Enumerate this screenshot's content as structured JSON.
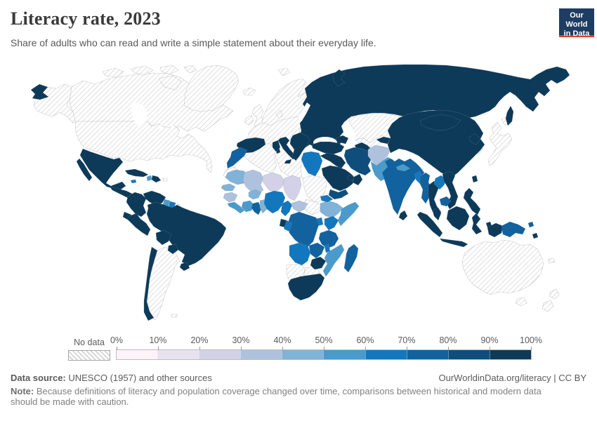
{
  "header": {
    "title": "Literacy rate, 2023",
    "subtitle": "Share of adults who can read and write a simple statement about their everyday life.",
    "logo": {
      "line1": "Our World",
      "line2": "in Data",
      "bg": "#1d3d63",
      "accent": "#dc3e31"
    }
  },
  "footer": {
    "source_label": "Data source:",
    "source_text": " UNESCO (1957) and other sources",
    "link_text": "OurWorldinData.org/literacy | CC BY",
    "note_label": "Note:",
    "note_text": " Because definitions of literacy and population coverage changed over time, comparisons between historical and modern data should be made with caution."
  },
  "chart_data": {
    "type": "choropleth_map",
    "title": "Literacy rate, 2023",
    "unit": "%",
    "legend": {
      "no_data_label": "No data",
      "no_data_pattern": "diagonal-hatch",
      "tick_labels": [
        "0%",
        "10%",
        "20%",
        "30%",
        "40%",
        "50%",
        "60%",
        "70%",
        "80%",
        "90%",
        "100%"
      ],
      "bin_ranges": [
        "0-10%",
        "10-20%",
        "20-30%",
        "30-40%",
        "40-50%",
        "50-60%",
        "60-70%",
        "70-80%",
        "80-90%",
        "90-100%"
      ],
      "bin_colors": [
        "#fcf3f9",
        "#e6e2f0",
        "#d3d1e7",
        "#aec2de",
        "#81b2d8",
        "#4a9bcc",
        "#1377bd",
        "#11629e",
        "#0f4e7c",
        "#0d3a59"
      ],
      "hatch_line_color": "#d4d4d4"
    },
    "regions": [
      {
        "id": "canada",
        "name": "Canada",
        "bin": "no_data"
      },
      {
        "id": "usa",
        "name": "United States",
        "bin": "no_data"
      },
      {
        "id": "alaska",
        "name": "United States (Alaska)",
        "bin": "no_data"
      },
      {
        "id": "greenland",
        "name": "Greenland",
        "bin": "no_data"
      },
      {
        "id": "arctic_islands",
        "name": "Canadian Arctic Islands",
        "bin": "no_data"
      },
      {
        "id": "iceland",
        "name": "Iceland",
        "bin": "no_data"
      },
      {
        "id": "uk",
        "name": "United Kingdom",
        "bin": "no_data"
      },
      {
        "id": "ireland",
        "name": "Ireland",
        "bin": "no_data"
      },
      {
        "id": "scandinavia",
        "name": "Norway, Sweden & Finland",
        "bin": "no_data"
      },
      {
        "id": "denmark",
        "name": "Denmark",
        "bin": "no_data"
      },
      {
        "id": "svalbard",
        "name": "Svalbard",
        "bin": "no_data"
      },
      {
        "id": "western_europe",
        "name": "Western & Central Europe",
        "bin": "no_data"
      },
      {
        "id": "kazakhstan",
        "name": "Kazakhstan",
        "bin": "no_data"
      },
      {
        "id": "uzbekistan",
        "name": "Uzbekistan",
        "bin": "no_data"
      },
      {
        "id": "japan",
        "name": "Japan",
        "bin": "no_data"
      },
      {
        "id": "south_korea",
        "name": "South Korea",
        "bin": "no_data"
      },
      {
        "id": "australia",
        "name": "Australia",
        "bin": "no_data"
      },
      {
        "id": "new_zealand",
        "name": "New Zealand",
        "bin": "no_data"
      },
      {
        "id": "new_caledonia",
        "name": "New Caledonia",
        "bin": "no_data"
      },
      {
        "id": "argentina",
        "name": "Argentina",
        "bin": "no_data"
      },
      {
        "id": "falklands",
        "name": "Falkland Islands",
        "bin": "no_data"
      },
      {
        "id": "french_guiana",
        "name": "French Guiana",
        "bin": "no_data"
      },
      {
        "id": "puerto_rico",
        "name": "Puerto Rico",
        "bin": "no_data"
      },
      {
        "id": "algeria",
        "name": "Algeria",
        "bin": "no_data"
      },
      {
        "id": "libya",
        "name": "Libya",
        "bin": "no_data"
      },
      {
        "id": "sudan",
        "name": "Sudan",
        "bin": "no_data"
      },
      {
        "id": "south_sudan",
        "name": "South Sudan",
        "bin": "no_data"
      },
      {
        "id": "western_sahara",
        "name": "Western Sahara",
        "bin": "no_data"
      },
      {
        "id": "namibia",
        "name": "Namibia",
        "bin": "no_data"
      },
      {
        "id": "botswana",
        "name": "Botswana",
        "bin": "no_data"
      },
      {
        "id": "russia_ee",
        "name": "Russia & Eastern Europe",
        "bin": 9
      },
      {
        "id": "spain",
        "name": "Spain & Portugal",
        "bin": 9
      },
      {
        "id": "italy",
        "name": "Italy",
        "bin": 9
      },
      {
        "id": "balkans",
        "name": "Balkans & Greece",
        "bin": 9
      },
      {
        "id": "turkey",
        "name": "Turkey",
        "bin": 9
      },
      {
        "id": "caucasus",
        "name": "Caucasus",
        "bin": 9
      },
      {
        "id": "turkmenistan",
        "name": "Turkmenistan",
        "bin": 9
      },
      {
        "id": "kyrgyz_tajik",
        "name": "Kyrgyzstan & Tajikistan",
        "bin": 9
      },
      {
        "id": "china",
        "name": "China",
        "bin": 9
      },
      {
        "id": "mongolia",
        "name": "Mongolia",
        "bin": 9
      },
      {
        "id": "north_korea",
        "name": "North Korea",
        "bin": 9
      },
      {
        "id": "taiwan",
        "name": "Taiwan",
        "bin": 9
      },
      {
        "id": "thailand",
        "name": "Thailand",
        "bin": 9
      },
      {
        "id": "vietnam",
        "name": "Vietnam",
        "bin": 9
      },
      {
        "id": "malaysia",
        "name": "Malaysia",
        "bin": 9
      },
      {
        "id": "indonesia",
        "name": "Indonesia",
        "bin": 9
      },
      {
        "id": "philippines",
        "name": "Philippines",
        "bin": 9
      },
      {
        "id": "sri_lanka",
        "name": "Sri Lanka",
        "bin": 9
      },
      {
        "id": "saudi_arabia",
        "name": "Saudi Arabia",
        "bin": 9
      },
      {
        "id": "oman",
        "name": "Oman",
        "bin": 9
      },
      {
        "id": "uae",
        "name": "United Arab Emirates",
        "bin": 9
      },
      {
        "id": "iraq_syria",
        "name": "Iraq & Syria",
        "bin": 9
      },
      {
        "id": "jordan_israel",
        "name": "Jordan & Israel",
        "bin": 9
      },
      {
        "id": "tunisia",
        "name": "Tunisia",
        "bin": 9
      },
      {
        "id": "mexico",
        "name": "Mexico",
        "bin": 9
      },
      {
        "id": "central_america",
        "name": "Central America",
        "bin": 9
      },
      {
        "id": "cuba",
        "name": "Cuba",
        "bin": 9
      },
      {
        "id": "dominican_republic",
        "name": "Dominican Republic",
        "bin": 9
      },
      {
        "id": "colombia",
        "name": "Colombia",
        "bin": 9
      },
      {
        "id": "venezuela",
        "name": "Venezuela",
        "bin": 9
      },
      {
        "id": "ecuador",
        "name": "Ecuador",
        "bin": 9
      },
      {
        "id": "peru",
        "name": "Peru",
        "bin": 9
      },
      {
        "id": "brazil",
        "name": "Brazil",
        "bin": 9
      },
      {
        "id": "bolivia",
        "name": "Bolivia",
        "bin": 9
      },
      {
        "id": "paraguay",
        "name": "Paraguay",
        "bin": 9
      },
      {
        "id": "uruguay",
        "name": "Uruguay",
        "bin": 9
      },
      {
        "id": "chile",
        "name": "Chile",
        "bin": 9
      },
      {
        "id": "gabon",
        "name": "Gabon",
        "bin": 9
      },
      {
        "id": "zimbabwe",
        "name": "Zimbabwe",
        "bin": 9
      },
      {
        "id": "south_africa",
        "name": "South Africa",
        "bin": 9
      },
      {
        "id": "solomon_islands",
        "name": "Solomon Islands",
        "bin": 9
      },
      {
        "id": "iran",
        "name": "Iran",
        "bin": 8
      },
      {
        "id": "yemen",
        "name": "Yemen",
        "bin": 8
      },
      {
        "id": "india",
        "name": "India",
        "bin": 7
      },
      {
        "id": "myanmar",
        "name": "Myanmar",
        "bin": 7
      },
      {
        "id": "cambodia",
        "name": "Cambodia",
        "bin": 7
      },
      {
        "id": "ghana",
        "name": "Ghana",
        "bin": 7
      },
      {
        "id": "morocco",
        "name": "Morocco",
        "bin": 7
      },
      {
        "id": "drc",
        "name": "Democratic Republic of Congo",
        "bin": 7
      },
      {
        "id": "tanzania",
        "name": "Tanzania",
        "bin": 7
      },
      {
        "id": "zambia",
        "name": "Zambia",
        "bin": 7
      },
      {
        "id": "madagascar",
        "name": "Madagascar",
        "bin": 7
      },
      {
        "id": "png",
        "name": "Papua New Guinea",
        "bin": 7
      },
      {
        "id": "egypt",
        "name": "Egypt",
        "bin": 6
      },
      {
        "id": "nigeria",
        "name": "Nigeria",
        "bin": 6
      },
      {
        "id": "cameroon",
        "name": "Cameroon",
        "bin": 6
      },
      {
        "id": "kenya",
        "name": "Kenya",
        "bin": 6
      },
      {
        "id": "uganda",
        "name": "Uganda",
        "bin": 6
      },
      {
        "id": "eritrea",
        "name": "Eritrea",
        "bin": 6
      },
      {
        "id": "congo",
        "name": "Republic of Congo",
        "bin": 6
      },
      {
        "id": "angola",
        "name": "Angola",
        "bin": 6
      },
      {
        "id": "malawi",
        "name": "Malawi",
        "bin": 6
      },
      {
        "id": "laos",
        "name": "Laos",
        "bin": 6
      },
      {
        "id": "bangladesh",
        "name": "Bangladesh",
        "bin": 6
      },
      {
        "id": "jamaica",
        "name": "Jamaica",
        "bin": 6
      },
      {
        "id": "suriname",
        "name": "Suriname",
        "bin": 6
      },
      {
        "id": "pakistan",
        "name": "Pakistan",
        "bin": 5
      },
      {
        "id": "nepal",
        "name": "Nepal",
        "bin": 5
      },
      {
        "id": "guyana",
        "name": "Guyana",
        "bin": 5
      },
      {
        "id": "haiti",
        "name": "Haiti",
        "bin": 5
      },
      {
        "id": "sierra_leone_liberia",
        "name": "Sierra Leone & Liberia",
        "bin": 5
      },
      {
        "id": "cote_divoire",
        "name": "Cote d'Ivoire",
        "bin": 5
      },
      {
        "id": "somalia",
        "name": "Somalia",
        "bin": 5
      },
      {
        "id": "mozambique",
        "name": "Mozambique",
        "bin": 5
      },
      {
        "id": "mauritania",
        "name": "Mauritania",
        "bin": 4
      },
      {
        "id": "senegal",
        "name": "Senegal",
        "bin": 4
      },
      {
        "id": "burkina_faso",
        "name": "Burkina Faso",
        "bin": 4
      },
      {
        "id": "togo_benin",
        "name": "Togo & Benin",
        "bin": 4
      },
      {
        "id": "ethiopia",
        "name": "Ethiopia",
        "bin": 4
      },
      {
        "id": "mali",
        "name": "Mali",
        "bin": 3
      },
      {
        "id": "guinea",
        "name": "Guinea",
        "bin": 3
      },
      {
        "id": "central_african_republic",
        "name": "Central African Republic",
        "bin": 3
      },
      {
        "id": "afghanistan",
        "name": "Afghanistan",
        "bin": 3
      },
      {
        "id": "niger",
        "name": "Niger",
        "bin": 2
      },
      {
        "id": "chad",
        "name": "Chad",
        "bin": 2
      }
    ]
  }
}
